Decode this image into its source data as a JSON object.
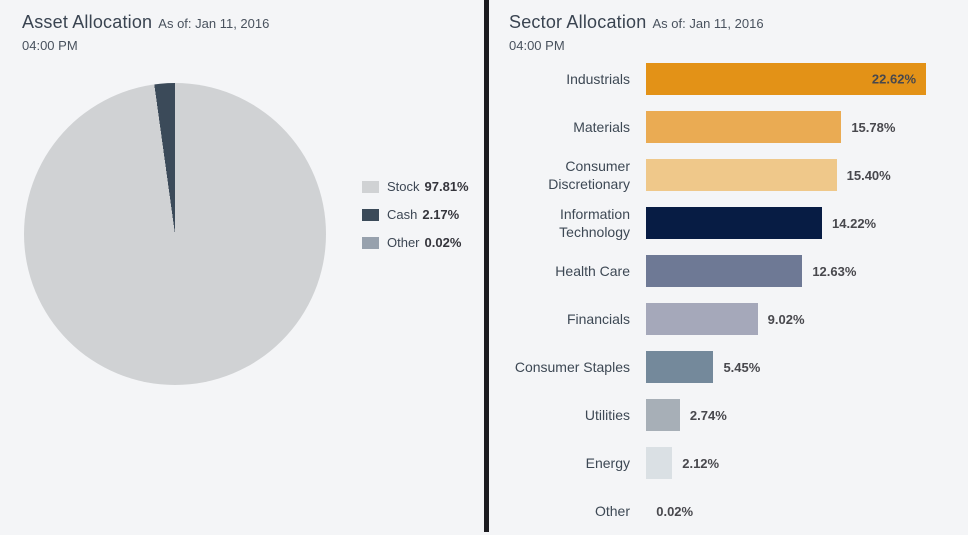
{
  "left_panel": {
    "title": "Asset Allocation",
    "as_of": "As of: Jan 11, 2016",
    "time": "04:00 PM"
  },
  "right_panel": {
    "title": "Sector Allocation",
    "as_of": "As of: Jan 11, 2016",
    "time": "04:00 PM"
  },
  "colors": {
    "background": "#f4f5f7",
    "divider": "#1b1b1f",
    "title_text": "#3a4451",
    "label_text": "#3d4854",
    "value_text": "#48484d"
  },
  "chart_data": [
    {
      "type": "pie",
      "title": "Asset Allocation",
      "as_of": "As of: Jan 11, 2016 04:00 PM",
      "legend_position": "right",
      "slices": [
        {
          "label": "Stock",
          "value": 97.81,
          "display": "97.81%",
          "color": "#d0d2d4"
        },
        {
          "label": "Cash",
          "value": 2.17,
          "display": "2.17%",
          "color": "#3b4a59"
        },
        {
          "label": "Other",
          "value": 0.02,
          "display": "0.02%",
          "color": "#97a1ad"
        }
      ]
    },
    {
      "type": "bar",
      "orientation": "horizontal",
      "title": "Sector Allocation",
      "as_of": "As of: Jan 11, 2016 04:00 PM",
      "xlim": [
        0,
        22.62
      ],
      "categories": [
        "Industrials",
        "Materials",
        "Consumer Discretionary",
        "Information Technology",
        "Health Care",
        "Financials",
        "Consumer Staples",
        "Utilities",
        "Energy",
        "Other"
      ],
      "values": [
        22.62,
        15.78,
        15.4,
        14.22,
        12.63,
        9.02,
        5.45,
        2.74,
        2.12,
        0.02
      ],
      "displays": [
        "22.62%",
        "15.78%",
        "15.40%",
        "14.22%",
        "12.63%",
        "9.02%",
        "5.45%",
        "2.74%",
        "2.12%",
        "0.02%"
      ],
      "colors": [
        "#e39217",
        "#eaab53",
        "#efc88a",
        "#071c44",
        "#6e7995",
        "#a5a8ba",
        "#74899b",
        "#a7afb7",
        "#dae0e4",
        "#dae0e4"
      ]
    }
  ]
}
